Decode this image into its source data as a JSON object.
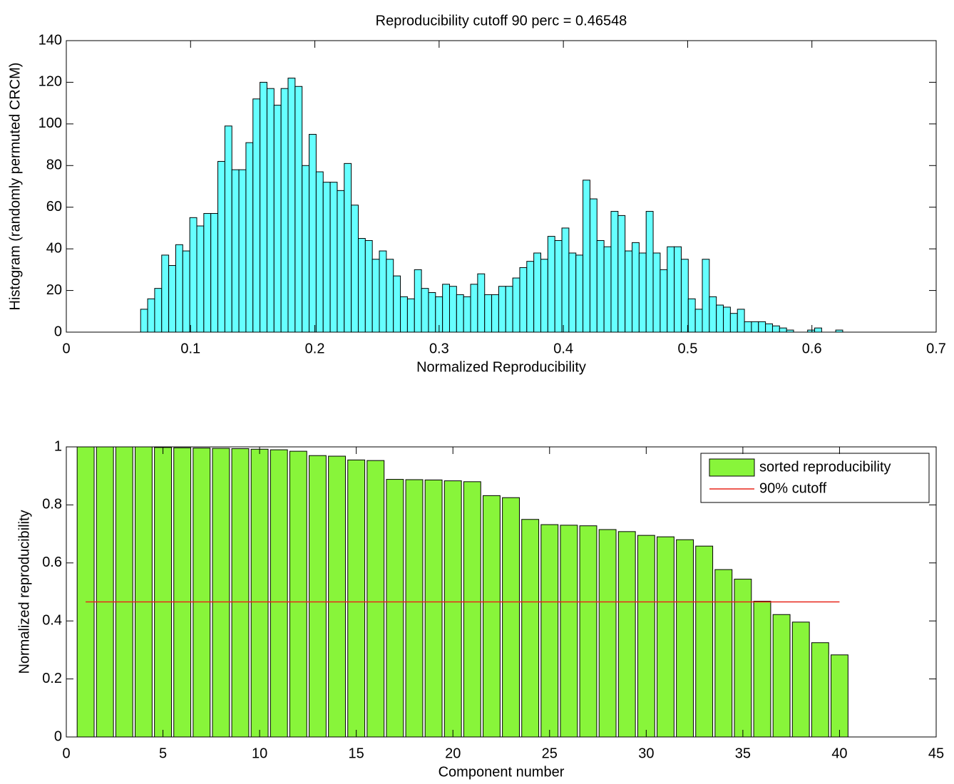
{
  "chart_data": [
    {
      "type": "histogram",
      "title": "Reproducibility cutoff 90 perc = 0.46548",
      "xlabel": "Normalized Reproducibility",
      "ylabel": "Histogram (randomly permuted CRCM)",
      "color": "#66ffff",
      "bins": [
        0.0598,
        0.06545,
        0.0711,
        0.07675,
        0.0824,
        0.08805,
        0.0937,
        0.09935,
        0.105,
        0.11065,
        0.1163,
        0.12195,
        0.1276,
        0.13325,
        0.1389,
        0.14455,
        0.1502,
        0.15585,
        0.1615,
        0.16715,
        0.1728,
        0.17845,
        0.1841,
        0.18975,
        0.1954,
        0.20105,
        0.2067,
        0.21235,
        0.218,
        0.22365,
        0.2293,
        0.23495,
        0.2406,
        0.24625,
        0.2519,
        0.25755,
        0.2632,
        0.26885,
        0.2745,
        0.28015,
        0.2858,
        0.29145,
        0.2971,
        0.30275,
        0.3084,
        0.31405,
        0.3197,
        0.32535,
        0.331,
        0.33665,
        0.3423,
        0.34795,
        0.3536,
        0.35925,
        0.3649,
        0.37055,
        0.3762,
        0.38185,
        0.3875,
        0.39315,
        0.3988,
        0.40445,
        0.4101,
        0.41575,
        0.4214,
        0.42705,
        0.4327,
        0.43835,
        0.444,
        0.44965,
        0.4553,
        0.46095,
        0.4666,
        0.47225,
        0.4779,
        0.48355,
        0.4892,
        0.49485,
        0.5005,
        0.50615,
        0.5118,
        0.51745,
        0.5231,
        0.52875,
        0.5344,
        0.54005,
        0.5457,
        0.55135,
        0.557,
        0.56265,
        0.5683,
        0.57395,
        0.5796,
        0.58525,
        0.5909,
        0.59655,
        0.6022,
        0.60785,
        0.6135,
        0.61915,
        0.6248
      ],
      "values": [
        11,
        16,
        21,
        37,
        32,
        42,
        39,
        55,
        51,
        57,
        57,
        82,
        99,
        78,
        78,
        91,
        112,
        120,
        117,
        109,
        117,
        122,
        118,
        80,
        95,
        77,
        72,
        72,
        68,
        81,
        61,
        45,
        44,
        35,
        39,
        35,
        27,
        17,
        16,
        30,
        21,
        19,
        17,
        23,
        22,
        18,
        17,
        23,
        28,
        18,
        18,
        22,
        22,
        26,
        31,
        34,
        38,
        35,
        46,
        44,
        50,
        38,
        37,
        73,
        64,
        44,
        41,
        58,
        56,
        39,
        43,
        38,
        58,
        38,
        30,
        41,
        41,
        35,
        16,
        11,
        35,
        17,
        13,
        12,
        9,
        11,
        5,
        5,
        5,
        4,
        3,
        2,
        1,
        0,
        0,
        1,
        2,
        0,
        0,
        1
      ],
      "xlim": [
        0,
        0.7
      ],
      "xticks": [
        0,
        0.1,
        0.2,
        0.3,
        0.4,
        0.5,
        0.6,
        0.7
      ],
      "ylim": [
        0,
        140
      ],
      "yticks": [
        0,
        20,
        40,
        60,
        80,
        100,
        120,
        140
      ]
    },
    {
      "type": "bar",
      "xlabel": "Component number",
      "ylabel": "Normalized reproducibility",
      "legend": "upper right",
      "x": [
        1,
        2,
        3,
        4,
        5,
        6,
        7,
        8,
        9,
        10,
        11,
        12,
        13,
        14,
        15,
        16,
        17,
        18,
        19,
        20,
        21,
        22,
        23,
        24,
        25,
        26,
        27,
        28,
        29,
        30,
        31,
        32,
        33,
        34,
        35,
        36,
        37,
        38,
        39,
        40
      ],
      "series": [
        {
          "name": "sorted reproducibility",
          "color": "#88f53a",
          "values": [
            1.0,
            1.0,
            1.0,
            1.0,
            0.998,
            0.997,
            0.996,
            0.995,
            0.994,
            0.992,
            0.99,
            0.985,
            0.97,
            0.968,
            0.955,
            0.953,
            0.888,
            0.887,
            0.886,
            0.883,
            0.88,
            0.832,
            0.825,
            0.75,
            0.732,
            0.73,
            0.728,
            0.715,
            0.708,
            0.695,
            0.69,
            0.68,
            0.658,
            0.577,
            0.544,
            0.468,
            0.422,
            0.396,
            0.325,
            0.283
          ]
        },
        {
          "name": "90% cutoff",
          "type": "line",
          "color": "#e8261a",
          "x": [
            1,
            40
          ],
          "values": [
            0.46548,
            0.46548
          ]
        }
      ],
      "xlim": [
        0,
        45
      ],
      "xticks": [
        0,
        5,
        10,
        15,
        20,
        25,
        30,
        35,
        40,
        45
      ],
      "ylim": [
        0,
        1
      ],
      "yticks": [
        0,
        0.2,
        0.4,
        0.6,
        0.8,
        1
      ]
    }
  ]
}
